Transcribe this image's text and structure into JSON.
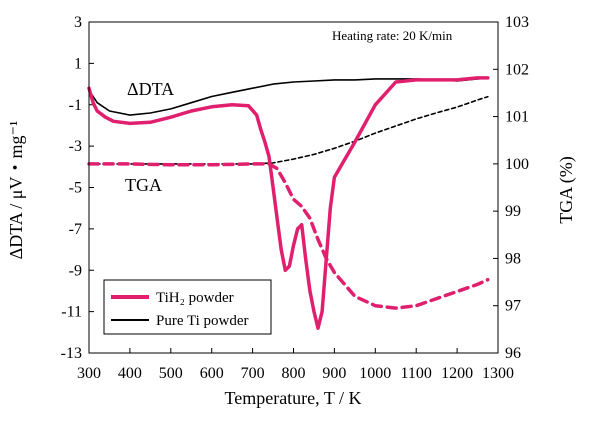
{
  "chart_data": {
    "type": "line",
    "annotation": "Heating rate: 20 K/min",
    "xlabel": "Temperature, T / K",
    "ylabel_left": "ΔDTA / μV・mg⁻¹",
    "ylabel_right": "TGA (%)",
    "xlim": [
      300,
      1300
    ],
    "ylim_left": [
      -13,
      3
    ],
    "ylim_right": [
      96,
      103
    ],
    "x_ticks": [
      "300",
      "400",
      "500",
      "600",
      "700",
      "800",
      "900",
      "1000",
      "1100",
      "1200",
      "1300"
    ],
    "y_ticks_left": [
      "3",
      "1",
      "-1",
      "-3",
      "-5",
      "-7",
      "-9",
      "-11",
      "-13"
    ],
    "y_ticks_right": [
      "103",
      "102",
      "101",
      "100",
      "99",
      "98",
      "97",
      "96"
    ],
    "curve_labels": [
      "ΔDTA",
      "TGA"
    ],
    "legend": {
      "position": "bottom-left",
      "entries": [
        {
          "label": "TiH₂ powder",
          "color": "#e0206e"
        },
        {
          "label": "Pure Ti powder",
          "color": "#000000"
        }
      ]
    },
    "series": [
      {
        "name": "TiH₂ powder",
        "measure": "ΔDTA",
        "axis": "left",
        "color": "#e0206e",
        "dash": "solid",
        "x": [
          300,
          310,
          320,
          340,
          360,
          400,
          450,
          500,
          550,
          600,
          650,
          690,
          710,
          720,
          730,
          740,
          750,
          760,
          770,
          780,
          790,
          800,
          810,
          820,
          830,
          840,
          850,
          860,
          870,
          880,
          890,
          900,
          950,
          1000,
          1050,
          1100,
          1150,
          1200,
          1250,
          1275
        ],
        "y": [
          -0.2,
          -0.9,
          -1.3,
          -1.6,
          -1.8,
          -1.9,
          -1.85,
          -1.6,
          -1.3,
          -1.1,
          -1.0,
          -1.05,
          -1.5,
          -2.2,
          -2.8,
          -3.5,
          -5.0,
          -6.5,
          -8.0,
          -9.0,
          -8.8,
          -7.8,
          -7.0,
          -6.8,
          -8.5,
          -10.0,
          -11.0,
          -11.8,
          -11.0,
          -8.5,
          -6.0,
          -4.5,
          -2.8,
          -1.0,
          0.1,
          0.2,
          0.2,
          0.2,
          0.3,
          0.3
        ]
      },
      {
        "name": "Pure Ti powder",
        "measure": "ΔDTA",
        "axis": "left",
        "color": "#000000",
        "dash": "solid",
        "x": [
          300,
          320,
          350,
          400,
          450,
          500,
          550,
          600,
          650,
          700,
          750,
          800,
          850,
          900,
          950,
          1000,
          1050,
          1100,
          1150,
          1170,
          1200,
          1250,
          1275
        ],
        "y": [
          -0.3,
          -0.9,
          -1.3,
          -1.5,
          -1.4,
          -1.2,
          -0.9,
          -0.6,
          -0.4,
          -0.2,
          0.0,
          0.1,
          0.15,
          0.2,
          0.2,
          0.25,
          0.25,
          0.25,
          0.2,
          0.2,
          0.15,
          0.25,
          0.3
        ]
      },
      {
        "name": "TiH₂ powder",
        "measure": "TGA",
        "axis": "right",
        "color": "#e0206e",
        "dash": "dashed",
        "x": [
          300,
          400,
          500,
          600,
          700,
          740,
          760,
          780,
          800,
          820,
          840,
          860,
          880,
          900,
          950,
          1000,
          1050,
          1100,
          1150,
          1200,
          1250,
          1275
        ],
        "y": [
          100.0,
          100.0,
          99.98,
          99.98,
          100.0,
          100.0,
          99.9,
          99.6,
          99.25,
          99.1,
          98.85,
          98.4,
          98.0,
          97.7,
          97.2,
          97.0,
          96.95,
          97.0,
          97.15,
          97.3,
          97.45,
          97.55
        ]
      },
      {
        "name": "Pure Ti powder",
        "measure": "TGA",
        "axis": "right",
        "color": "#000000",
        "dash": "dashed",
        "x": [
          300,
          400,
          500,
          600,
          700,
          750,
          800,
          850,
          900,
          950,
          1000,
          1050,
          1100,
          1150,
          1200,
          1250,
          1275
        ],
        "y": [
          100.0,
          100.0,
          100.0,
          100.0,
          100.0,
          100.02,
          100.1,
          100.2,
          100.33,
          100.48,
          100.65,
          100.8,
          100.95,
          101.08,
          101.2,
          101.35,
          101.42
        ]
      }
    ]
  }
}
